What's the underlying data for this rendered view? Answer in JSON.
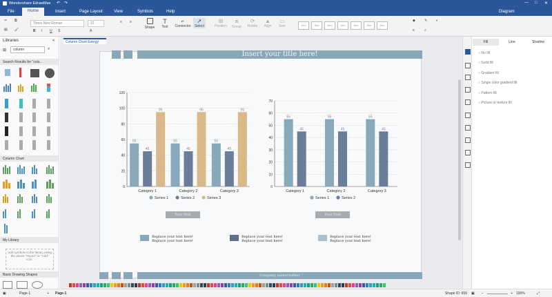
{
  "app": {
    "title": "Wondershare EdrawMax",
    "diagram_label": "Diagram"
  },
  "menu": {
    "file": "File",
    "tabs": [
      "Home",
      "Insert",
      "Page Layout",
      "View",
      "Symbols",
      "Help"
    ]
  },
  "ribbon": {
    "font_name": "Times New Roman",
    "font_size": "12",
    "tools": [
      "Shape",
      "Text",
      "Connector",
      "Select"
    ],
    "arrange": [
      "Position",
      "Group",
      "Rotate",
      "Align",
      "Size"
    ]
  },
  "sidebar": {
    "title": "Libraries",
    "search_value": "column",
    "search_results_label": "Search Results for \"colu...",
    "column_chart_label": "Column Chart",
    "my_library_label": "My Library",
    "my_library_hint": "Add symbols to the library using the above \"Import\" or \"Add\" icon.",
    "basic_shapes_label": "Basic Drawing Shapes"
  },
  "doc_tab": "Column Chart Energy",
  "page": {
    "title": "Insert your title here!",
    "footer": "Company name/Author",
    "text_boxes": [
      "Your Text",
      "Your Text"
    ],
    "legend_texts": [
      "Replace your text here!\nReplace your text here!",
      "Replace your text here!\nReplace your text here!",
      "Replace your text here!\nReplace your text here!"
    ]
  },
  "colors": {
    "s1": "#87a9ba",
    "s2": "#6a7d99",
    "s3": "#d9b98a",
    "legend1": "#87a9ba",
    "legend2": "#5e6f8c",
    "legend3": "#a8c1cd"
  },
  "chart_data": [
    {
      "type": "bar",
      "categories": [
        "Category 1",
        "Category 2",
        "Category 3"
      ],
      "series": [
        {
          "name": "Series 1",
          "values": [
            55,
            55,
            55
          ]
        },
        {
          "name": "Series 2",
          "values": [
            45,
            45,
            45
          ]
        },
        {
          "name": "Series 3",
          "values": [
            95,
            95,
            95
          ]
        }
      ],
      "ylim": [
        0,
        120
      ],
      "yticks": [
        "0",
        "20",
        "40",
        "60",
        "80",
        "100",
        "120"
      ],
      "grid": true,
      "legend": "bottom"
    },
    {
      "type": "bar",
      "categories": [
        "Category 1",
        "Category 2",
        "Category 3"
      ],
      "series": [
        {
          "name": "Series 1",
          "values": [
            55,
            55,
            55
          ]
        },
        {
          "name": "Series 2",
          "values": [
            45,
            45,
            45
          ]
        }
      ],
      "ylim": [
        0,
        70
      ],
      "yticks": [
        "0",
        "10",
        "20",
        "30",
        "40",
        "50",
        "60",
        "70"
      ],
      "grid": true,
      "legend": "bottom"
    }
  ],
  "fill_panel": {
    "tabs": [
      "Fill",
      "Line",
      "Shadow"
    ],
    "options": [
      "No fill",
      "Solid fill",
      "Gradient fill",
      "Single color gradient fill",
      "Pattern fill",
      "Picture or texture fill"
    ]
  },
  "status": {
    "page_tab": "Page-1",
    "page_tab2": "Page-1",
    "shape_id": "Shape ID: 659",
    "zoom": "100%"
  }
}
